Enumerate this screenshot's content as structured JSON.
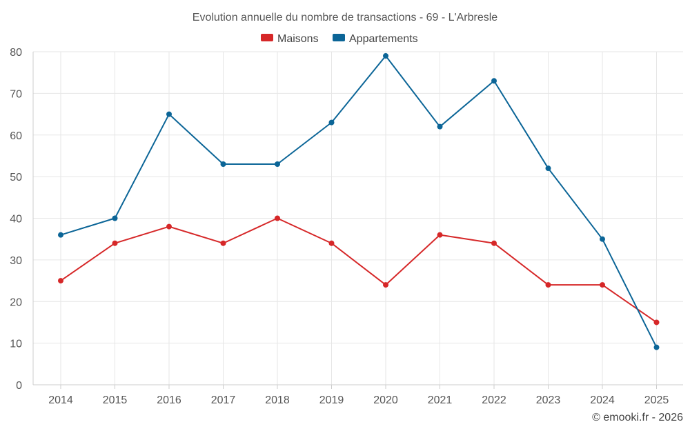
{
  "chart_data": {
    "type": "line",
    "title": "Evolution annuelle du nombre de transactions - 69 - L'Arbresle",
    "categories": [
      "2014",
      "2015",
      "2016",
      "2017",
      "2018",
      "2019",
      "2020",
      "2021",
      "2022",
      "2023",
      "2024",
      "2025"
    ],
    "series": [
      {
        "name": "Maisons",
        "color": "#d62728",
        "values": [
          25,
          34,
          38,
          34,
          40,
          34,
          24,
          36,
          34,
          24,
          24,
          15
        ]
      },
      {
        "name": "Appartements",
        "color": "#0b6597",
        "values": [
          36,
          40,
          65,
          53,
          53,
          63,
          79,
          62,
          73,
          52,
          35,
          9
        ]
      }
    ],
    "ylim": [
      0,
      80
    ],
    "yticks": [
      "0",
      "10",
      "20",
      "30",
      "40",
      "50",
      "60",
      "70",
      "80"
    ],
    "xlabel": "",
    "ylabel": "",
    "grid": true,
    "legend_position": "top-center"
  },
  "credit": "© emooki.fr - 2026"
}
